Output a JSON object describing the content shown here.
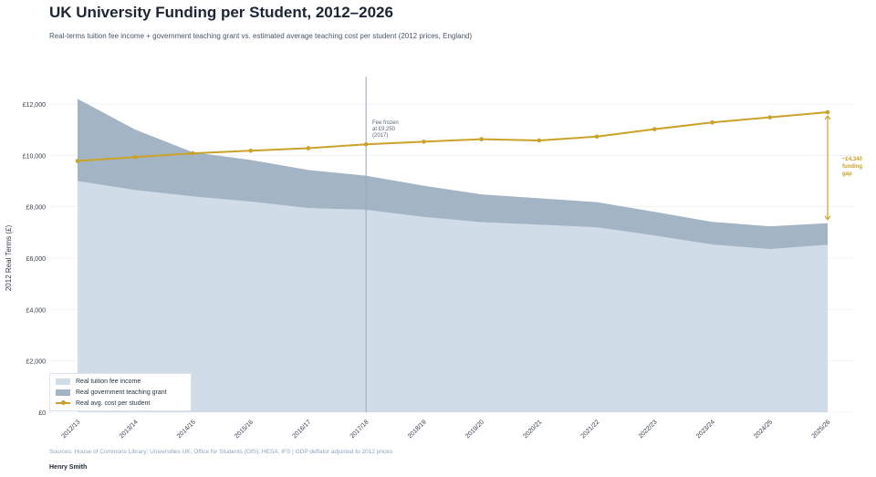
{
  "title": "UK University Funding per Student, 2012–2026",
  "subtitle": "Real-terms tuition fee income + government teaching grant vs. estimated average teaching cost per student (2012 prices, England)",
  "footer": {
    "sources": "Sources: House of Commons Library; Universities UK; Office for Students (OfS); HESA; IFS  |  GDP deflator adjusted to 2012 prices",
    "author": "Henry Smith"
  },
  "colors": {
    "fee": "#d0dce8",
    "grant": "#a3b5c5",
    "cost": "#c9a227",
    "marker_line": "#9aa8b6"
  },
  "legend": {
    "fee": "Real tuition fee income",
    "grant": "Real government teaching grant",
    "cost": "Real avg. cost per student"
  },
  "chart_data": {
    "type": "area",
    "title": "UK University Funding per Student, 2012–2026",
    "xlabel": "",
    "ylabel": "2012 Real Terms (£)",
    "ylim": [
      0,
      12000
    ],
    "yticks": [
      0,
      2000,
      4000,
      6000,
      8000,
      10000,
      12000
    ],
    "ytick_labels": [
      "£0",
      "£2,000",
      "£4,000",
      "£6,000",
      "£8,000",
      "£10,000",
      "£12,000"
    ],
    "categories": [
      "2012/13",
      "2013/14",
      "2014/15",
      "2015/16",
      "2016/17",
      "2017/18",
      "2018/19",
      "2019/20",
      "2020/21",
      "2021/22",
      "2022/23",
      "2023/24",
      "2024/25",
      "2025/26"
    ],
    "series": [
      {
        "name": "Real tuition fee income",
        "kind": "stacked-area",
        "values": [
          9000,
          8650,
          8400,
          8200,
          7950,
          7880,
          7600,
          7400,
          7300,
          7200,
          6880,
          6530,
          6350,
          6520
        ]
      },
      {
        "name": "Real government teaching grant",
        "kind": "stacked-area",
        "values": [
          3200,
          2350,
          1720,
          1620,
          1480,
          1330,
          1220,
          1080,
          1030,
          980,
          920,
          880,
          890,
          840
        ]
      },
      {
        "name": "Real avg. cost per student",
        "kind": "line",
        "values": [
          9780,
          9930,
          10080,
          10180,
          10280,
          10430,
          10530,
          10630,
          10580,
          10730,
          11020,
          11280,
          11480,
          11680
        ]
      }
    ],
    "annotations": [
      {
        "at": "2017/18",
        "lines": [
          "Fee frozen",
          "at £9,250",
          "(2017)"
        ]
      },
      {
        "at": "2025/26",
        "lines": [
          "~£4,340",
          "funding",
          "gap"
        ]
      }
    ],
    "legend_position": "bottom-left"
  }
}
